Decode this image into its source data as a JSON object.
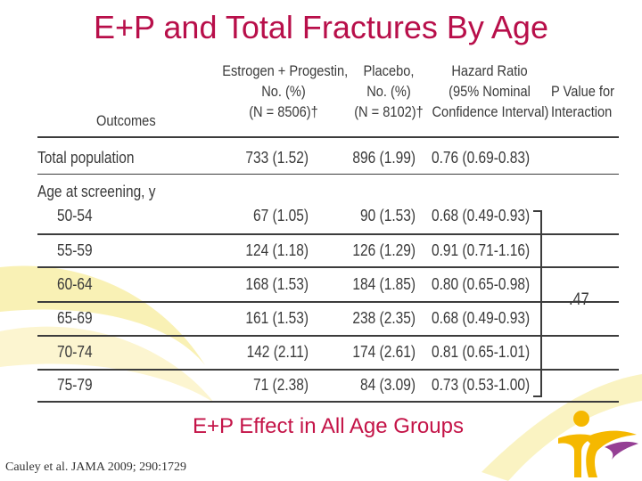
{
  "title": "E+P and Total Fractures By Age",
  "table": {
    "headers": {
      "outcomes": "Outcomes",
      "ep": [
        "Estrogen + Progestin,",
        "No. (%)",
        "(N = 8506)†"
      ],
      "placebo": [
        "Placebo,",
        "No. (%)",
        "(N = 8102)†"
      ],
      "hazard": [
        "Hazard Ratio",
        "(95% Nominal",
        "Confidence Interval)"
      ],
      "pvalue": [
        "P Value for",
        "Interaction"
      ]
    },
    "total_row": {
      "label": "Total population",
      "ep": "733 (1.52)",
      "placebo": "896 (1.99)",
      "hr": "0.76 (0.69-0.83)"
    },
    "age_section_label": "Age at screening, y",
    "rows": [
      {
        "label": "50-54",
        "ep": "67 (1.05)",
        "placebo": "90 (1.53)",
        "hr": "0.68 (0.49-0.93)"
      },
      {
        "label": "55-59",
        "ep": "124 (1.18)",
        "placebo": "126 (1.29)",
        "hr": "0.91 (0.71-1.16)"
      },
      {
        "label": "60-64",
        "ep": "168 (1.53)",
        "placebo": "184 (1.85)",
        "hr": "0.80 (0.65-0.98)"
      },
      {
        "label": "65-69",
        "ep": "161 (1.53)",
        "placebo": "238 (2.35)",
        "hr": "0.68 (0.49-0.93)"
      },
      {
        "label": "70-74",
        "ep": "142 (2.11)",
        "placebo": "174 (2.61)",
        "hr": "0.81 (0.65-1.01)"
      },
      {
        "label": "75-79",
        "ep": "71 (2.38)",
        "placebo": "84 (3.09)",
        "hr": "0.73 (0.53-1.00)"
      }
    ],
    "interaction_p": ".47"
  },
  "caption": "E+P Effect in All Age Groups",
  "citation": "Cauley et al.  JAMA 2009; 290:1729",
  "colors": {
    "title": "#b80f4a",
    "caption": "#c41448",
    "logo_yellow": "#f5b800",
    "logo_purple": "#8a2a88"
  }
}
